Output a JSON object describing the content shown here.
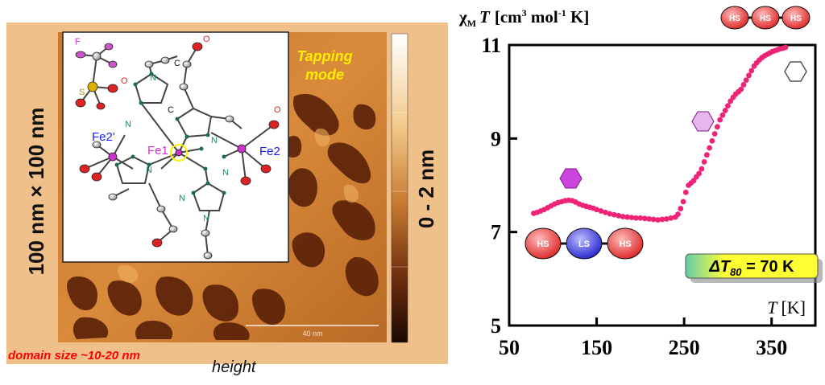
{
  "afm": {
    "mode_label_line1": "Tapping",
    "mode_label_line2": "mode",
    "scan_size_label": "100 nm × 100 nm",
    "colorbar_label": "0 - 2 nm",
    "scale_bar_label": "40 nm",
    "domain_label": "domain size ~10-20 nm",
    "height_label": "height",
    "colors": {
      "frame": "#f0c08a",
      "mode_label": "#ffee00",
      "domain_label": "#ff0000"
    }
  },
  "molecule": {
    "atom_labels": {
      "F": "F",
      "O_top": "O",
      "O_left": "O",
      "O_right": "O",
      "S": "S",
      "C_top": "C",
      "C_mid": "C",
      "Fe2prime": "Fe2'",
      "Fe1": "Fe1",
      "Fe2": "Fe2",
      "N": "N"
    },
    "colors": {
      "fe_label": "#1a1aff",
      "fe1_label": "#cc33cc",
      "n_label": "#1a8a6a",
      "o_label": "#dd2222",
      "s_label": "#b08a00",
      "f_label": "#cc33cc"
    }
  },
  "chart_data": {
    "type": "scatter",
    "ylabel_chi": "χ",
    "ylabel_sub": "M",
    "ylabel_T": "T",
    "ylabel_units_pre": "[cm",
    "ylabel_sup3": "3",
    "ylabel_mol": " mol",
    "ylabel_supm1": "-1",
    "ylabel_units_post": " K]",
    "xlabel": "T",
    "xlabel_units": "[K]",
    "xlim": [
      50,
      400
    ],
    "ylim": [
      5,
      11
    ],
    "xticks": [
      50,
      150,
      250,
      350
    ],
    "yticks": [
      5,
      7,
      9,
      11
    ],
    "annotation_delta": "ΔT",
    "annotation_sub": "80",
    "annotation_value": " = 70 K",
    "chain_labels": {
      "hs": "HS",
      "ls": "LS"
    },
    "colors": {
      "points": "#ee2277",
      "annotation_box": "#ffff33",
      "hs_atom": "#ee3333",
      "ls_atom": "#3333dd",
      "hex_mid": "#cc44dd",
      "hex_high": "#e8b6ef"
    },
    "series": [
      {
        "x": [
          78,
          82,
          86,
          90,
          94,
          98,
          102,
          106,
          110,
          114,
          118,
          122,
          126,
          130,
          134,
          138,
          142,
          146,
          150,
          155,
          160,
          165,
          170,
          175,
          180,
          185,
          190,
          195,
          200,
          205,
          210,
          215,
          220,
          225,
          230,
          235,
          240,
          243,
          246,
          249,
          252,
          255,
          258,
          261,
          264,
          267,
          270,
          273,
          276,
          279,
          282,
          285,
          288,
          291,
          294,
          297,
          300,
          303,
          306,
          309,
          312,
          315,
          318,
          321,
          324,
          327,
          330,
          333,
          336,
          339,
          342,
          345,
          348,
          351,
          354,
          357,
          360,
          363,
          366
        ],
        "y": [
          7.4,
          7.42,
          7.45,
          7.48,
          7.52,
          7.56,
          7.6,
          7.63,
          7.65,
          7.67,
          7.68,
          7.67,
          7.64,
          7.6,
          7.57,
          7.55,
          7.53,
          7.51,
          7.48,
          7.45,
          7.42,
          7.39,
          7.37,
          7.35,
          7.33,
          7.32,
          7.31,
          7.3,
          7.3,
          7.29,
          7.28,
          7.27,
          7.26,
          7.27,
          7.28,
          7.3,
          7.32,
          7.38,
          7.5,
          7.65,
          7.85,
          8.0,
          8.05,
          8.1,
          8.18,
          8.25,
          8.35,
          8.5,
          8.65,
          8.8,
          8.95,
          9.1,
          9.25,
          9.4,
          9.5,
          9.6,
          9.7,
          9.8,
          9.88,
          9.95,
          10.0,
          10.05,
          10.15,
          10.25,
          10.35,
          10.45,
          10.55,
          10.62,
          10.68,
          10.73,
          10.77,
          10.8,
          10.83,
          10.86,
          10.88,
          10.9,
          10.92,
          10.93,
          10.95
        ]
      }
    ]
  }
}
